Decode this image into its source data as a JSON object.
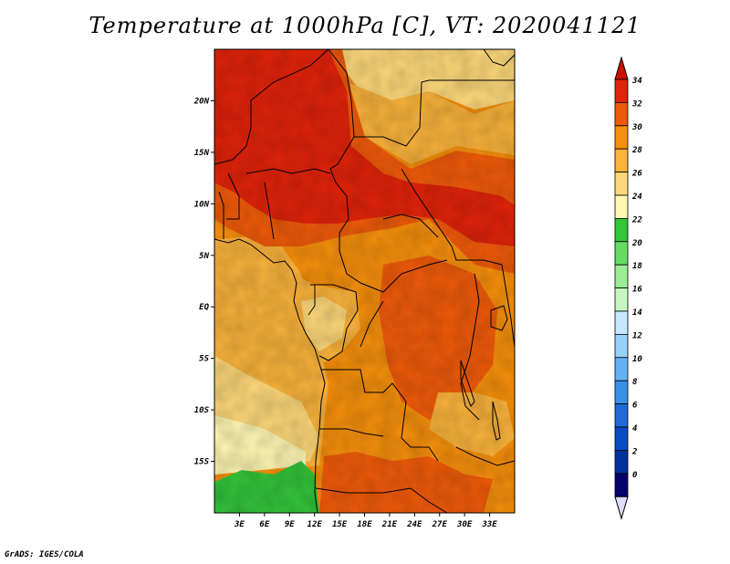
{
  "title": "Temperature at 1000hPa [C], VT: 2020041121",
  "footer": "GrADS: IGES/COLA",
  "map": {
    "lon_range": [
      0,
      36
    ],
    "lat_range": [
      -20,
      25
    ],
    "lat_ticks": [
      {
        "lat": 20,
        "label": "20N"
      },
      {
        "lat": 15,
        "label": "15N"
      },
      {
        "lat": 10,
        "label": "10N"
      },
      {
        "lat": 5,
        "label": "5N"
      },
      {
        "lat": 0,
        "label": "EQ"
      },
      {
        "lat": -5,
        "label": "5S"
      },
      {
        "lat": -10,
        "label": "10S"
      },
      {
        "lat": -15,
        "label": "15S"
      }
    ],
    "lon_ticks": [
      {
        "lon": 3,
        "label": "3E"
      },
      {
        "lon": 6,
        "label": "6E"
      },
      {
        "lon": 9,
        "label": "9E"
      },
      {
        "lon": 12,
        "label": "12E"
      },
      {
        "lon": 15,
        "label": "15E"
      },
      {
        "lon": 18,
        "label": "18E"
      },
      {
        "lon": 21,
        "label": "21E"
      },
      {
        "lon": 24,
        "label": "24E"
      },
      {
        "lon": 27,
        "label": "27E"
      },
      {
        "lon": 30,
        "label": "30E"
      },
      {
        "lon": 33,
        "label": "33E"
      }
    ]
  },
  "colorbar": {
    "labels": [
      "34",
      "32",
      "30",
      "28",
      "26",
      "24",
      "22",
      "20",
      "18",
      "16",
      "14",
      "12",
      "10",
      "8",
      "6",
      "4",
      "2",
      "0"
    ],
    "colors": [
      "#e0230a",
      "#ee5a0a",
      "#f58f0c",
      "#f9b23c",
      "#fcd77a",
      "#fff7b3",
      "#33c43a",
      "#66dc62",
      "#9cec96",
      "#c6f6c2",
      "#c7e8fc",
      "#98d1f8",
      "#64b2f2",
      "#3a8fe6",
      "#1f6ad8",
      "#0b4bc4",
      "#003399",
      "#06046b"
    ],
    "top_arrow_color": "#cc1100",
    "bottom_arrow_color": "#dcdcff"
  }
}
